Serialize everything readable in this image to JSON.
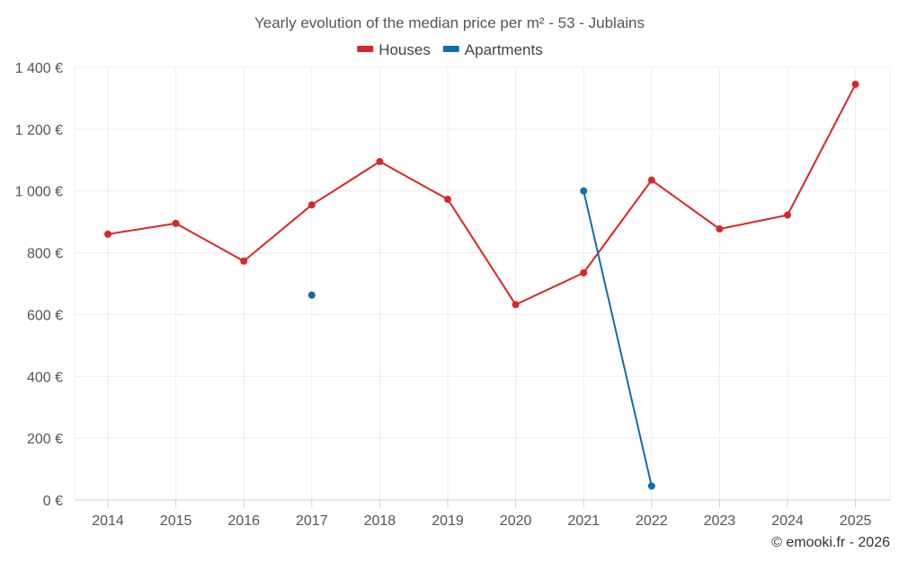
{
  "chart_data": {
    "type": "line",
    "title": "Yearly evolution of the median price per m² - 53 - Jublains",
    "categories": [
      "2014",
      "2015",
      "2016",
      "2017",
      "2018",
      "2019",
      "2020",
      "2021",
      "2022",
      "2023",
      "2024",
      "2025"
    ],
    "ylim": [
      0,
      1400
    ],
    "yticks": [
      0,
      200,
      400,
      600,
      800,
      1000,
      1200,
      1400
    ],
    "ytick_labels": [
      "0 €",
      "200 €",
      "400 €",
      "600 €",
      "800 €",
      "1 000 €",
      "1 200 €",
      "1 400 €"
    ],
    "grid": true,
    "legend_position": "top-center",
    "series": [
      {
        "name": "Houses",
        "color": "#d62728",
        "values": [
          860,
          895,
          773,
          955,
          1095,
          973,
          632,
          735,
          1035,
          877,
          922,
          1345
        ]
      },
      {
        "name": "Apartments",
        "color": "#0f6ea8",
        "values": [
          null,
          null,
          null,
          663,
          null,
          null,
          null,
          1000,
          45,
          null,
          null,
          null
        ]
      }
    ]
  },
  "credit": "© emooki.fr - 2026"
}
